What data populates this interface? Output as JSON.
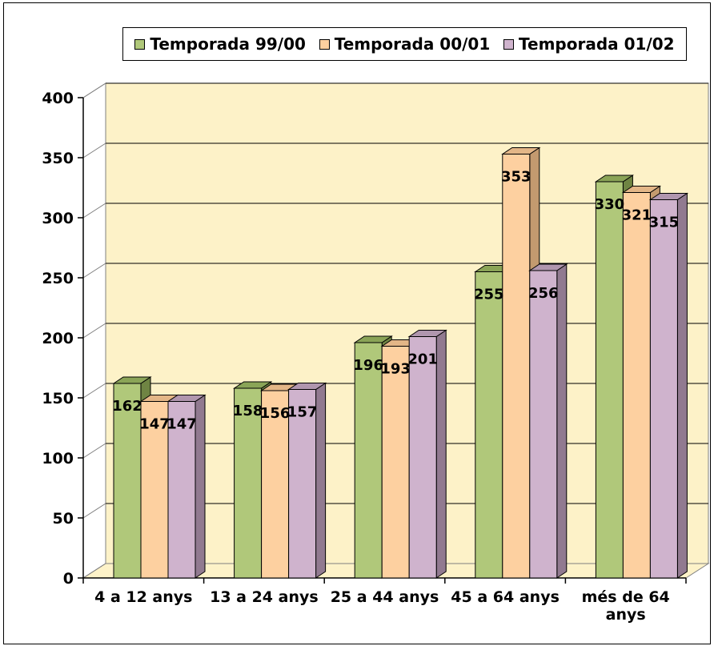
{
  "chart_data": {
    "type": "bar",
    "title": "",
    "xlabel": "",
    "ylabel": "",
    "categories": [
      "4 a 12 anys",
      "13 a 24 anys",
      "25 a 44 anys",
      "45 a 64 anys",
      "més de 64 anys"
    ],
    "series": [
      {
        "name": "Temporada 99/00",
        "values": [
          162,
          158,
          196,
          255,
          330
        ]
      },
      {
        "name": "Temporada 00/01",
        "values": [
          147,
          156,
          193,
          353,
          321
        ]
      },
      {
        "name": "Temporada 01/02",
        "values": [
          147,
          157,
          201,
          256,
          315
        ]
      }
    ],
    "ylim": [
      0,
      400
    ],
    "yticks": [
      0,
      50,
      100,
      150,
      200,
      250,
      300,
      350,
      400
    ],
    "grid": true,
    "legend_position": "top",
    "three_d": true,
    "data_labels": true,
    "colors": {
      "series": [
        "#b0c87a",
        "#fdd0a0",
        "#cfb3cd"
      ],
      "series_side": [
        "#6f8443",
        "#c39a6f",
        "#917a90"
      ],
      "series_top": [
        "#8aa457",
        "#e3b687",
        "#b096ae"
      ],
      "plot_back_wall": "#fdf2c8",
      "plot_floor": "#fdf2c8",
      "gridline": "#000000"
    }
  }
}
